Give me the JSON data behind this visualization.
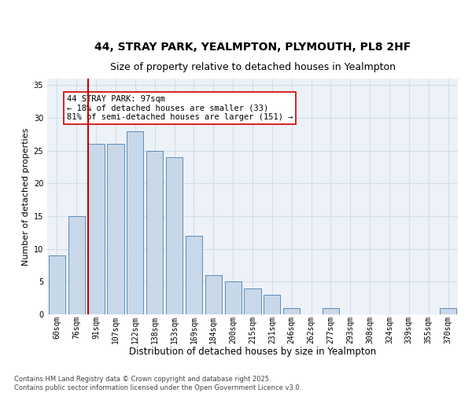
{
  "title_line1": "44, STRAY PARK, YEALMPTON, PLYMOUTH, PL8 2HF",
  "title_line2": "Size of property relative to detached houses in Yealmpton",
  "xlabel": "Distribution of detached houses by size in Yealmpton",
  "ylabel": "Number of detached properties",
  "categories": [
    "60sqm",
    "76sqm",
    "91sqm",
    "107sqm",
    "122sqm",
    "138sqm",
    "153sqm",
    "169sqm",
    "184sqm",
    "200sqm",
    "215sqm",
    "231sqm",
    "246sqm",
    "262sqm",
    "277sqm",
    "293sqm",
    "308sqm",
    "324sqm",
    "339sqm",
    "355sqm",
    "370sqm"
  ],
  "values": [
    9,
    15,
    26,
    26,
    28,
    25,
    24,
    12,
    6,
    5,
    4,
    3,
    1,
    0,
    1,
    0,
    0,
    0,
    0,
    0,
    1
  ],
  "bar_color": "#c8d8e8",
  "bar_edge_color": "#5b8db8",
  "vline_color": "#cc0000",
  "vline_xindex": 2,
  "annotation_text": "44 STRAY PARK: 97sqm\n← 18% of detached houses are smaller (33)\n81% of semi-detached houses are larger (151) →",
  "annotation_box_color": "#ffffff",
  "annotation_box_edge": "#cc0000",
  "ylim": [
    0,
    36
  ],
  "yticks": [
    0,
    5,
    10,
    15,
    20,
    25,
    30,
    35
  ],
  "grid_color": "#d4dde8",
  "bg_color": "#edf2f8",
  "footer": "Contains HM Land Registry data © Crown copyright and database right 2025.\nContains public sector information licensed under the Open Government Licence v3.0.",
  "title_fontsize": 10,
  "subtitle_fontsize": 9,
  "xlabel_fontsize": 8.5,
  "ylabel_fontsize": 8,
  "tick_fontsize": 7,
  "annotation_fontsize": 7.5,
  "footer_fontsize": 6
}
